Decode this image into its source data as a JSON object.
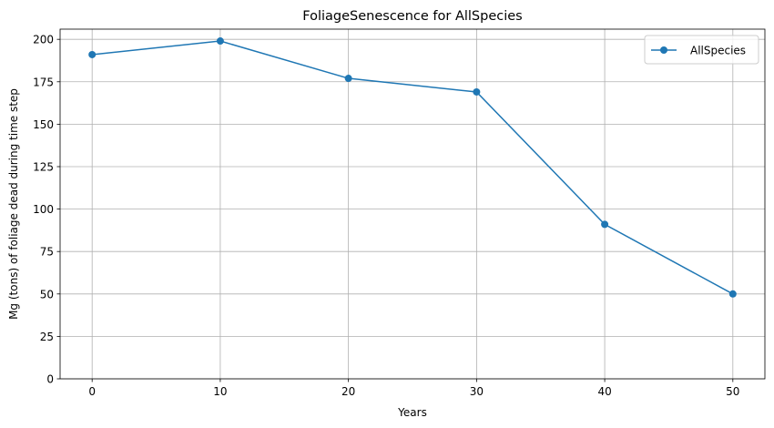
{
  "chart_data": {
    "type": "line",
    "title": "FoliageSenescence for AllSpecies",
    "xlabel": "Years",
    "ylabel": "Mg (tons) of foliage dead during time step",
    "xlim": [
      -2.5,
      52.5
    ],
    "ylim": [
      0,
      206
    ],
    "xticks": [
      0,
      10,
      20,
      30,
      40,
      50
    ],
    "yticks": [
      0,
      25,
      50,
      75,
      100,
      125,
      150,
      175,
      200
    ],
    "grid": true,
    "legend_position": "top-right",
    "series": [
      {
        "name": "AllSpecies",
        "color": "#1f77b4",
        "marker": "circle",
        "x": [
          0,
          10,
          20,
          30,
          40,
          50
        ],
        "y": [
          191,
          199,
          177,
          169,
          91,
          50
        ]
      }
    ]
  }
}
